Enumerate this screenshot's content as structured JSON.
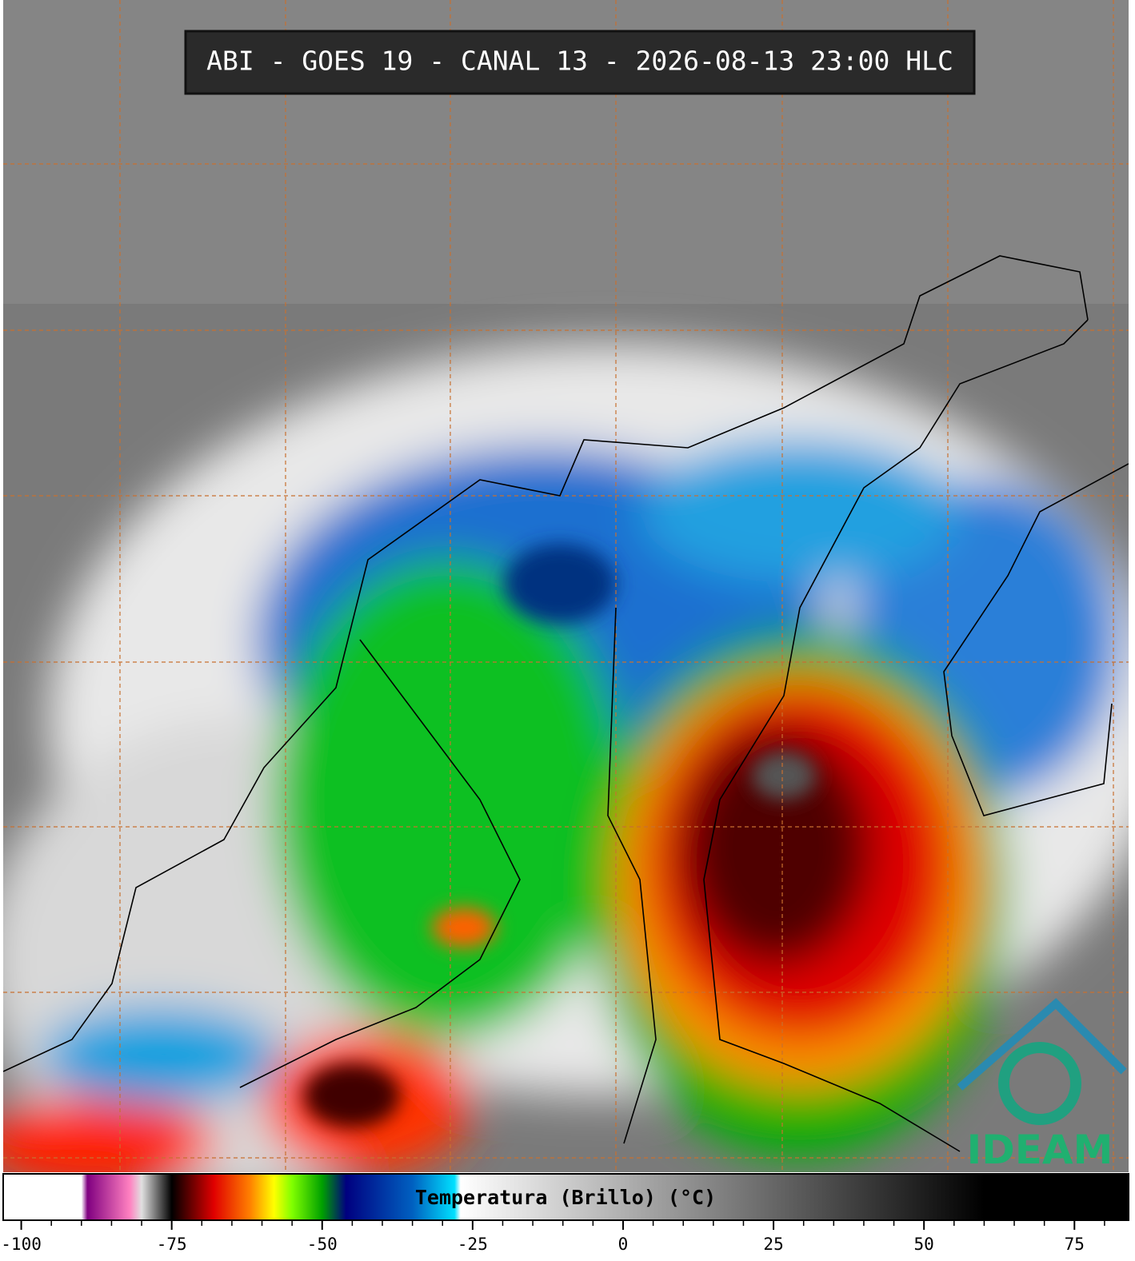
{
  "header": {
    "title": "ABI - GOES 19 - CANAL 13 - 2026-08-13 23:00 HLC"
  },
  "colorbar": {
    "label": "Temperatura (Brillo) (°C)",
    "lim": [
      -103,
      84
    ],
    "ticks": [
      -100,
      -75,
      -50,
      -25,
      0,
      25,
      50,
      75
    ],
    "minor_step": 5,
    "stops": [
      [
        -103,
        "#ffffff"
      ],
      [
        -90,
        "#ffffff"
      ],
      [
        -89,
        "#800080"
      ],
      [
        -82,
        "#ff80c0"
      ],
      [
        -80,
        "#e0e0e0"
      ],
      [
        -75,
        "#000000"
      ],
      [
        -72,
        "#600000"
      ],
      [
        -68,
        "#e00000"
      ],
      [
        -62,
        "#ff8000"
      ],
      [
        -58,
        "#ffff00"
      ],
      [
        -55,
        "#80ff00"
      ],
      [
        -50,
        "#00a000"
      ],
      [
        -46,
        "#000080"
      ],
      [
        -35,
        "#0060c0"
      ],
      [
        -28,
        "#00e0ff"
      ],
      [
        -27,
        "#ffffff"
      ],
      [
        60,
        "#000000"
      ],
      [
        84,
        "#000000"
      ]
    ]
  },
  "logo": {
    "text": "IDEAM"
  }
}
